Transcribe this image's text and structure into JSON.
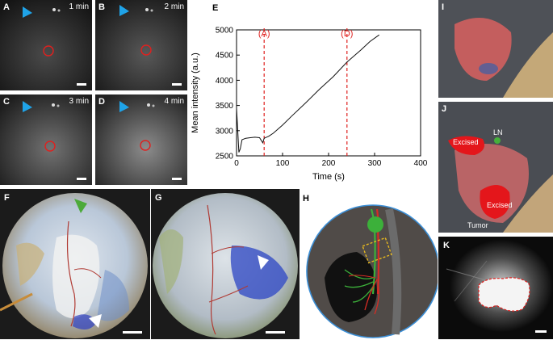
{
  "panels": {
    "A": {
      "label": "A",
      "time": "1 min"
    },
    "B": {
      "label": "B",
      "time": "2 min"
    },
    "C": {
      "label": "C",
      "time": "3 min"
    },
    "D": {
      "label": "D",
      "time": "4 min"
    },
    "E": {
      "label": "E"
    },
    "F": {
      "label": "F"
    },
    "G": {
      "label": "G"
    },
    "H": {
      "label": "H"
    },
    "I": {
      "label": "I"
    },
    "J": {
      "label": "J",
      "tag_excised_top": "Excised",
      "tag_ln": "LN",
      "tag_excised_bottom": "Excised",
      "tag_tumor": "Tumor"
    },
    "K": {
      "label": "K"
    }
  },
  "colors": {
    "marker_cyan": "#1fa3e8",
    "roi_red": "#e0201e",
    "dashed_red": "#e0201e",
    "arrow_green": "#4caa3a",
    "ln_green": "#46b03b"
  },
  "chart_data": {
    "type": "line",
    "xlabel": "Time (s)",
    "ylabel": "Mean intensity (a.u.)",
    "xlim": [
      0,
      400
    ],
    "ylim": [
      2500,
      5000
    ],
    "xticks": [
      0,
      100,
      200,
      300,
      400
    ],
    "yticks": [
      2500,
      3000,
      3500,
      4000,
      4500,
      5000
    ],
    "series": [
      {
        "x": [
          0,
          2,
          5,
          8,
          12,
          20,
          30,
          40,
          50,
          57,
          60,
          70,
          80,
          100,
          120,
          150,
          180,
          210,
          240,
          270,
          290,
          310
        ],
        "y": [
          3450,
          3120,
          2570,
          2640,
          2820,
          2850,
          2860,
          2870,
          2860,
          2760,
          2850,
          2890,
          2950,
          3110,
          3290,
          3550,
          3820,
          4070,
          4360,
          4600,
          4770,
          4900
        ]
      }
    ],
    "vlines": [
      {
        "x": 60,
        "label": "(A)"
      },
      {
        "x": 240,
        "label": "(D)"
      }
    ],
    "grid": false
  }
}
